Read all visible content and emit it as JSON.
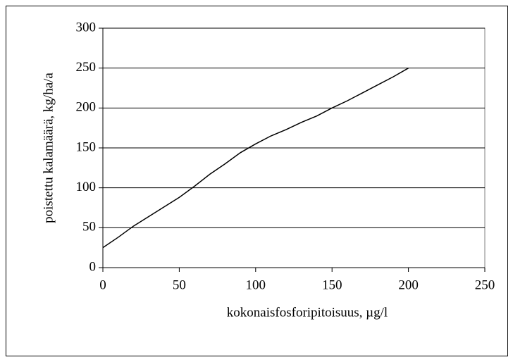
{
  "chart_data": {
    "type": "line",
    "xlabel": "kokonaisfosforipitoisuus, µg/l",
    "ylabel": "poistettu kalamäärä, kg/ha/a",
    "x": [
      0,
      10,
      20,
      30,
      40,
      50,
      60,
      70,
      80,
      90,
      100,
      110,
      120,
      130,
      140,
      150,
      160,
      170,
      180,
      190,
      200
    ],
    "series": [
      {
        "color": "#000000",
        "values": [
          25,
          38,
          52,
          64,
          76,
          88,
          102,
          117,
          130,
          144,
          155,
          165,
          173,
          182,
          190,
          200,
          209,
          219,
          229,
          239,
          250
        ]
      }
    ],
    "xlim": [
      0,
      250
    ],
    "xticks": [
      0,
      50,
      100,
      150,
      200,
      250
    ],
    "ylim": [
      0,
      300
    ],
    "yticks": [
      0,
      50,
      100,
      150,
      200,
      250,
      300
    ],
    "grid": true
  }
}
